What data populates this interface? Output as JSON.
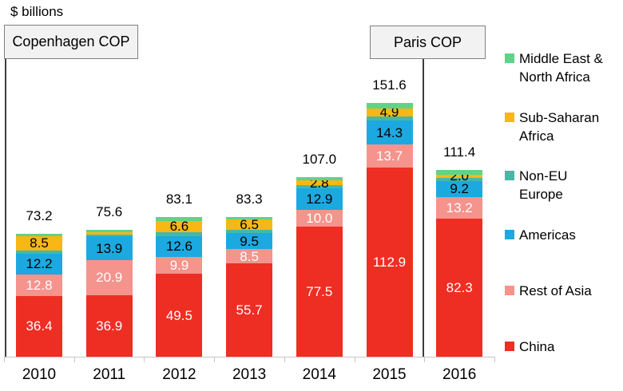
{
  "title": "$ billions",
  "annotations": {
    "copenhagen": {
      "label": "Copenhagen COP"
    },
    "paris": {
      "label": "Paris COP"
    }
  },
  "chart_data": {
    "type": "bar",
    "stacked": true,
    "title": "$ billions",
    "xlabel": "",
    "ylabel": "$ billions",
    "categories": [
      "2010",
      "2011",
      "2012",
      "2013",
      "2014",
      "2015",
      "2016"
    ],
    "totals": [
      "73.2",
      "75.6",
      "83.1",
      "83.3",
      "107.0",
      "151.6",
      "111.4"
    ],
    "series_note": "series listed bottom-to-top of stack; unlabeled sliver values estimated from bar heights",
    "series": [
      {
        "name": "China",
        "color": "#ee2e23",
        "label_color": "#ffffff",
        "values": [
          36.4,
          36.9,
          49.5,
          55.7,
          77.5,
          112.9,
          82.3
        ],
        "labels": [
          "36.4",
          "36.9",
          "49.5",
          "55.7",
          "77.5",
          "112.9",
          "82.3"
        ]
      },
      {
        "name": "Rest of Asia",
        "color": "#f5938d",
        "label_color": "#ffffff",
        "values": [
          12.8,
          20.9,
          9.9,
          8.5,
          10.0,
          13.7,
          13.2
        ],
        "labels": [
          "12.8",
          "20.9",
          "9.9",
          "8.5",
          "10.0",
          "13.7",
          "13.2"
        ]
      },
      {
        "name": "Americas",
        "color": "#1ca9e0",
        "label_color": "#000000",
        "values": [
          12.2,
          13.9,
          12.6,
          9.5,
          12.9,
          14.3,
          9.2
        ],
        "labels": [
          "12.2",
          "13.9",
          "12.6",
          "9.5",
          "12.9",
          "14.3",
          "9.2"
        ]
      },
      {
        "name": "Non-EU Europe",
        "color": "#46b8a7",
        "label_color": "#000000",
        "values": [
          2.0,
          1.1,
          2.3,
          1.8,
          1.9,
          2.5,
          2.0
        ],
        "labels": [
          "",
          "",
          "",
          "",
          "",
          "",
          ""
        ]
      },
      {
        "name": "Sub-Saharan Africa",
        "color": "#f8b714",
        "label_color": "#000000",
        "values": [
          8.5,
          1.4,
          6.6,
          6.5,
          2.8,
          4.9,
          2.0
        ],
        "labels": [
          "8.5",
          "",
          "6.6",
          "6.5",
          "2.8",
          "4.9",
          "2.0"
        ]
      },
      {
        "name": "Middle East & North Africa",
        "color": "#5ed389",
        "label_color": "#000000",
        "values": [
          1.3,
          1.4,
          2.2,
          1.3,
          1.9,
          3.3,
          2.7
        ],
        "labels": [
          "",
          "",
          "",
          "",
          "",
          "",
          ""
        ]
      }
    ],
    "legend_position": "right",
    "grid": false
  },
  "legend": {
    "items": [
      {
        "label": "Middle East & North Africa",
        "color": "#5ed389"
      },
      {
        "label": "Sub-Saharan Africa",
        "color": "#f8b714"
      },
      {
        "label": "Non-EU Europe",
        "color": "#46b8a7"
      },
      {
        "label": "Americas",
        "color": "#1ca9e0"
      },
      {
        "label": "Rest of Asia",
        "color": "#f5938d"
      },
      {
        "label": "China",
        "color": "#ee2e23"
      }
    ]
  }
}
